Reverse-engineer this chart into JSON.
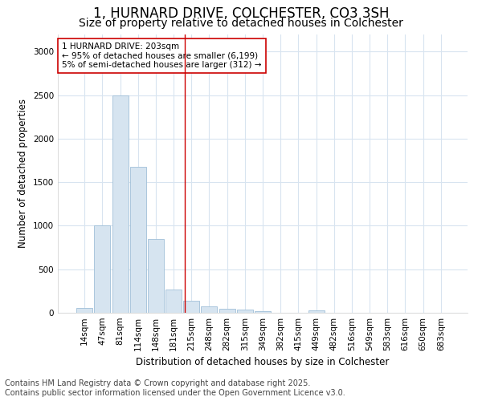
{
  "title": "1, HURNARD DRIVE, COLCHESTER, CO3 3SH",
  "subtitle": "Size of property relative to detached houses in Colchester",
  "xlabel": "Distribution of detached houses by size in Colchester",
  "ylabel": "Number of detached properties",
  "categories": [
    "14sqm",
    "47sqm",
    "81sqm",
    "114sqm",
    "148sqm",
    "181sqm",
    "215sqm",
    "248sqm",
    "282sqm",
    "315sqm",
    "349sqm",
    "382sqm",
    "415sqm",
    "449sqm",
    "482sqm",
    "516sqm",
    "549sqm",
    "583sqm",
    "616sqm",
    "650sqm",
    "683sqm"
  ],
  "values": [
    55,
    1000,
    2500,
    1680,
    850,
    270,
    140,
    70,
    45,
    35,
    20,
    0,
    0,
    30,
    0,
    0,
    0,
    0,
    0,
    0,
    0
  ],
  "bar_color": "#d6e4f0",
  "bar_edge_color": "#a0bfd8",
  "vline_color": "#cc0000",
  "annotation_text": "1 HURNARD DRIVE: 203sqm\n← 95% of detached houses are smaller (6,199)\n5% of semi-detached houses are larger (312) →",
  "annotation_box_facecolor": "#ffffff",
  "annotation_box_edgecolor": "#cc0000",
  "ylim": [
    0,
    3200
  ],
  "yticks": [
    0,
    500,
    1000,
    1500,
    2000,
    2500,
    3000
  ],
  "bg_color": "#ffffff",
  "plot_bg_color": "#ffffff",
  "grid_color": "#d8e4f0",
  "footer_line1": "Contains HM Land Registry data © Crown copyright and database right 2025.",
  "footer_line2": "Contains public sector information licensed under the Open Government Licence v3.0.",
  "title_fontsize": 12,
  "subtitle_fontsize": 10,
  "tick_fontsize": 7.5,
  "label_fontsize": 8.5,
  "footer_fontsize": 7,
  "annotation_fontsize": 7.5
}
